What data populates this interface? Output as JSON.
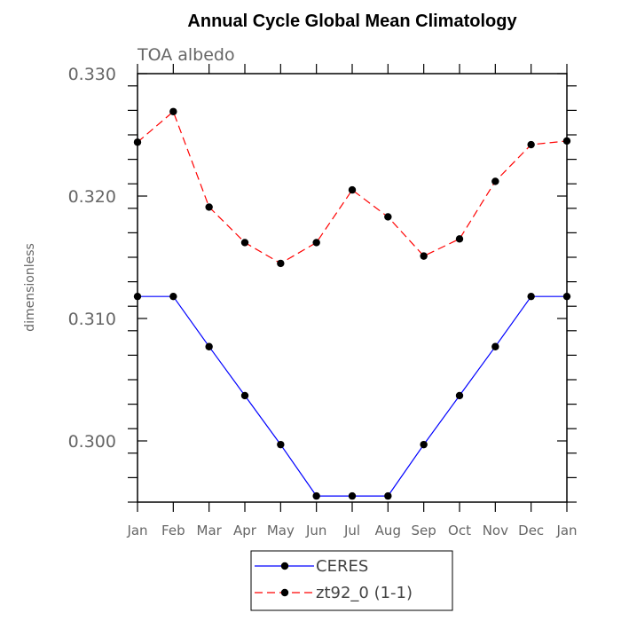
{
  "chart_data": {
    "type": "line",
    "title": "Annual Cycle Global Mean Climatology",
    "subtitle": "TOA albedo",
    "ylabel": "dimensionless",
    "xlabel": "",
    "categories": [
      "Jan",
      "Feb",
      "Mar",
      "Apr",
      "May",
      "Jun",
      "Jul",
      "Aug",
      "Sep",
      "Oct",
      "Nov",
      "Dec",
      "Jan"
    ],
    "ylim": [
      0.295,
      0.33
    ],
    "yticks": [
      {
        "value": 0.3,
        "label": "0.300"
      },
      {
        "value": 0.31,
        "label": "0.310"
      },
      {
        "value": 0.32,
        "label": "0.320"
      },
      {
        "value": 0.33,
        "label": "0.330"
      }
    ],
    "grid": false,
    "legend_position": "bottom-center",
    "series": [
      {
        "name": "CERES",
        "color": "#0000ff",
        "dash": "solid",
        "marker": "filled-circle",
        "values": [
          0.3118,
          0.3118,
          0.3077,
          0.3037,
          0.2997,
          0.2955,
          0.2955,
          0.2955,
          0.2997,
          0.3037,
          0.3077,
          0.3118,
          0.3118
        ]
      },
      {
        "name": "zt92_0 (1-1)",
        "color": "#ff0000",
        "dash": "dashed",
        "marker": "filled-circle",
        "values": [
          0.3244,
          0.3269,
          0.3191,
          0.3162,
          0.3145,
          0.3162,
          0.3205,
          0.3183,
          0.3151,
          0.3165,
          0.3212,
          0.3242,
          0.3245
        ]
      }
    ]
  }
}
